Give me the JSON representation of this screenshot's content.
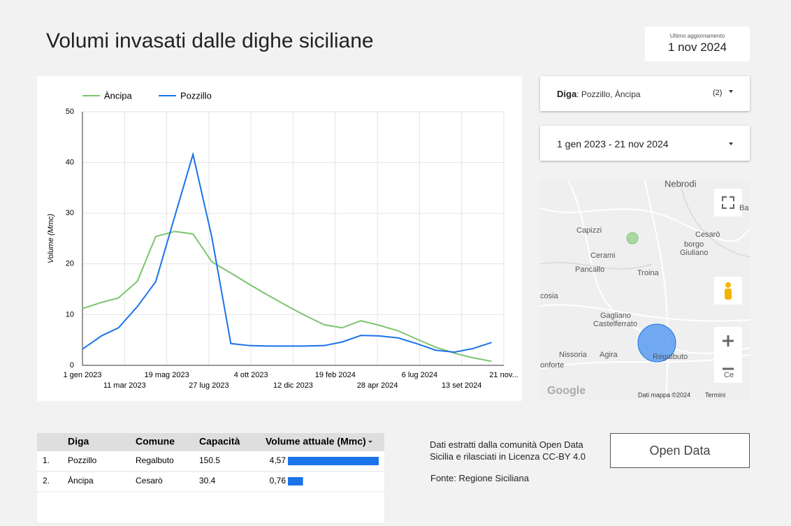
{
  "header": {
    "title": "Volumi invasati dalle dighe siciliane",
    "update_label": "Ultimo aggiornamento",
    "update_date": "1 nov 2024"
  },
  "chart_data": {
    "type": "line",
    "y_label": "Volume (Mmc)",
    "x": [
      "2023-01-01",
      "2023-02-01",
      "2023-03-01",
      "2023-04-01",
      "2023-05-01",
      "2023-06-01",
      "2023-07-01",
      "2023-08-01",
      "2023-09-01",
      "2023-10-01",
      "2023-11-01",
      "2023-12-01",
      "2024-01-01",
      "2024-02-01",
      "2024-03-01",
      "2024-04-01",
      "2024-05-01",
      "2024-06-01",
      "2024-07-01",
      "2024-08-01",
      "2024-09-01",
      "2024-10-01",
      "2024-11-01"
    ],
    "xlim": [
      "2023-01-01",
      "2024-11-21"
    ],
    "xticks": [
      {
        "value": "2023-01-01",
        "label": "1 gen 2023"
      },
      {
        "value": "2023-03-11",
        "label": "11 mar 2023"
      },
      {
        "value": "2023-05-19",
        "label": "19 mag 2023"
      },
      {
        "value": "2023-07-27",
        "label": "27 lug 2023"
      },
      {
        "value": "2023-10-04",
        "label": "4 ott 2023"
      },
      {
        "value": "2023-12-12",
        "label": "12 dic 2023"
      },
      {
        "value": "2024-02-19",
        "label": "19 feb 2024"
      },
      {
        "value": "2024-04-28",
        "label": "28 apr 2024"
      },
      {
        "value": "2024-07-06",
        "label": "6 lug 2024"
      },
      {
        "value": "2024-09-13",
        "label": "13 set 2024"
      },
      {
        "value": "2024-11-21",
        "label": "21 nov..."
      }
    ],
    "series": [
      {
        "name": "Àncipa",
        "color": "#7cc46e",
        "values": [
          11.2,
          12.4,
          13.3,
          16.6,
          25.4,
          26.4,
          25.9,
          20.4,
          18.2,
          16.0,
          13.8,
          11.8,
          9.8,
          8.0,
          7.4,
          8.8,
          7.9,
          6.8,
          5.2,
          3.6,
          2.4,
          1.5,
          0.8
        ]
      },
      {
        "name": "Pozzillo",
        "color": "#1a73e8",
        "values": [
          3.2,
          5.8,
          7.4,
          11.6,
          16.5,
          29.3,
          41.6,
          25.2,
          4.3,
          3.9,
          3.8,
          3.8,
          3.8,
          3.9,
          4.6,
          5.9,
          5.8,
          5.4,
          4.3,
          3.0,
          2.6,
          3.3,
          4.5
        ]
      }
    ],
    "ylim": [
      0,
      50
    ],
    "yticks": [
      0,
      10,
      20,
      30,
      40,
      50
    ],
    "grid": true
  },
  "filters": {
    "diga_label": "Diga",
    "diga_value": ": Pozzillo, Àncipa",
    "diga_count": "(2)",
    "date_range": "1 gen 2023 - 21 nov 2024"
  },
  "map": {
    "labels": [
      "Nebrodi",
      "Capizzi",
      "Cesarò",
      "borgo",
      "Giuliano",
      "Cerami",
      "Pancallo",
      "Troina",
      "cosia",
      "Gagliano",
      "Castelferrato",
      "Nissoria",
      "Agira",
      "Regalbuto",
      "onforte",
      "Ce",
      "Ba"
    ],
    "attribution": "Dati mappa ©2024",
    "terms": "Termini",
    "logo": "Google"
  },
  "table": {
    "columns": [
      "Diga",
      "Comune",
      "Capacità",
      "Volume attuale (Mmc)"
    ],
    "rows": [
      [
        "1.",
        "Pozzillo",
        "Regalbuto",
        150.5
      ],
      [
        "2.",
        "Àncipa",
        "Cesarò",
        30.4
      ]
    ],
    "volume": {
      "values": [
        4.57,
        0.76
      ],
      "value_labels": [
        "4,57",
        "0,76"
      ]
    }
  },
  "note": {
    "text": "Dati estratti dalla comunità Open Data Sicilia e rilasciati in Licenza CC-BY 4.0",
    "source": "Fonte: Regione Siciliana",
    "button": "Open Data"
  }
}
